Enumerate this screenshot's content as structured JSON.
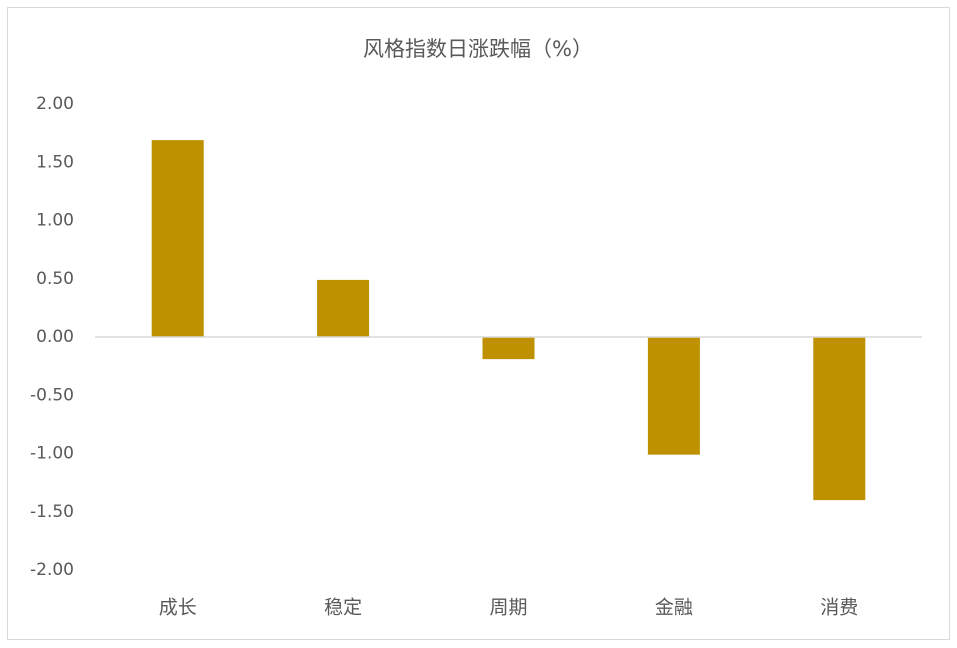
{
  "chart_data": {
    "type": "bar",
    "title": "风格指数日涨跌幅（%）",
    "categories": [
      "成长",
      "稳定",
      "周期",
      "金融",
      "消费"
    ],
    "values": [
      1.69,
      0.49,
      -0.19,
      -1.01,
      -1.4
    ],
    "color": "#bf9000",
    "ylim": [
      -2,
      2
    ],
    "yticks": [
      {
        "value": 2,
        "label": "2.00"
      },
      {
        "value": 1.5,
        "label": "1.50"
      },
      {
        "value": 1,
        "label": "1.00"
      },
      {
        "value": 0.5,
        "label": "0.50"
      },
      {
        "value": 0,
        "label": "0.00"
      },
      {
        "value": -0.5,
        "label": "-0.50"
      },
      {
        "value": -1,
        "label": "-1.00"
      },
      {
        "value": -1.5,
        "label": "-1.50"
      },
      {
        "value": -2,
        "label": "-2.00"
      }
    ],
    "grid": false
  }
}
